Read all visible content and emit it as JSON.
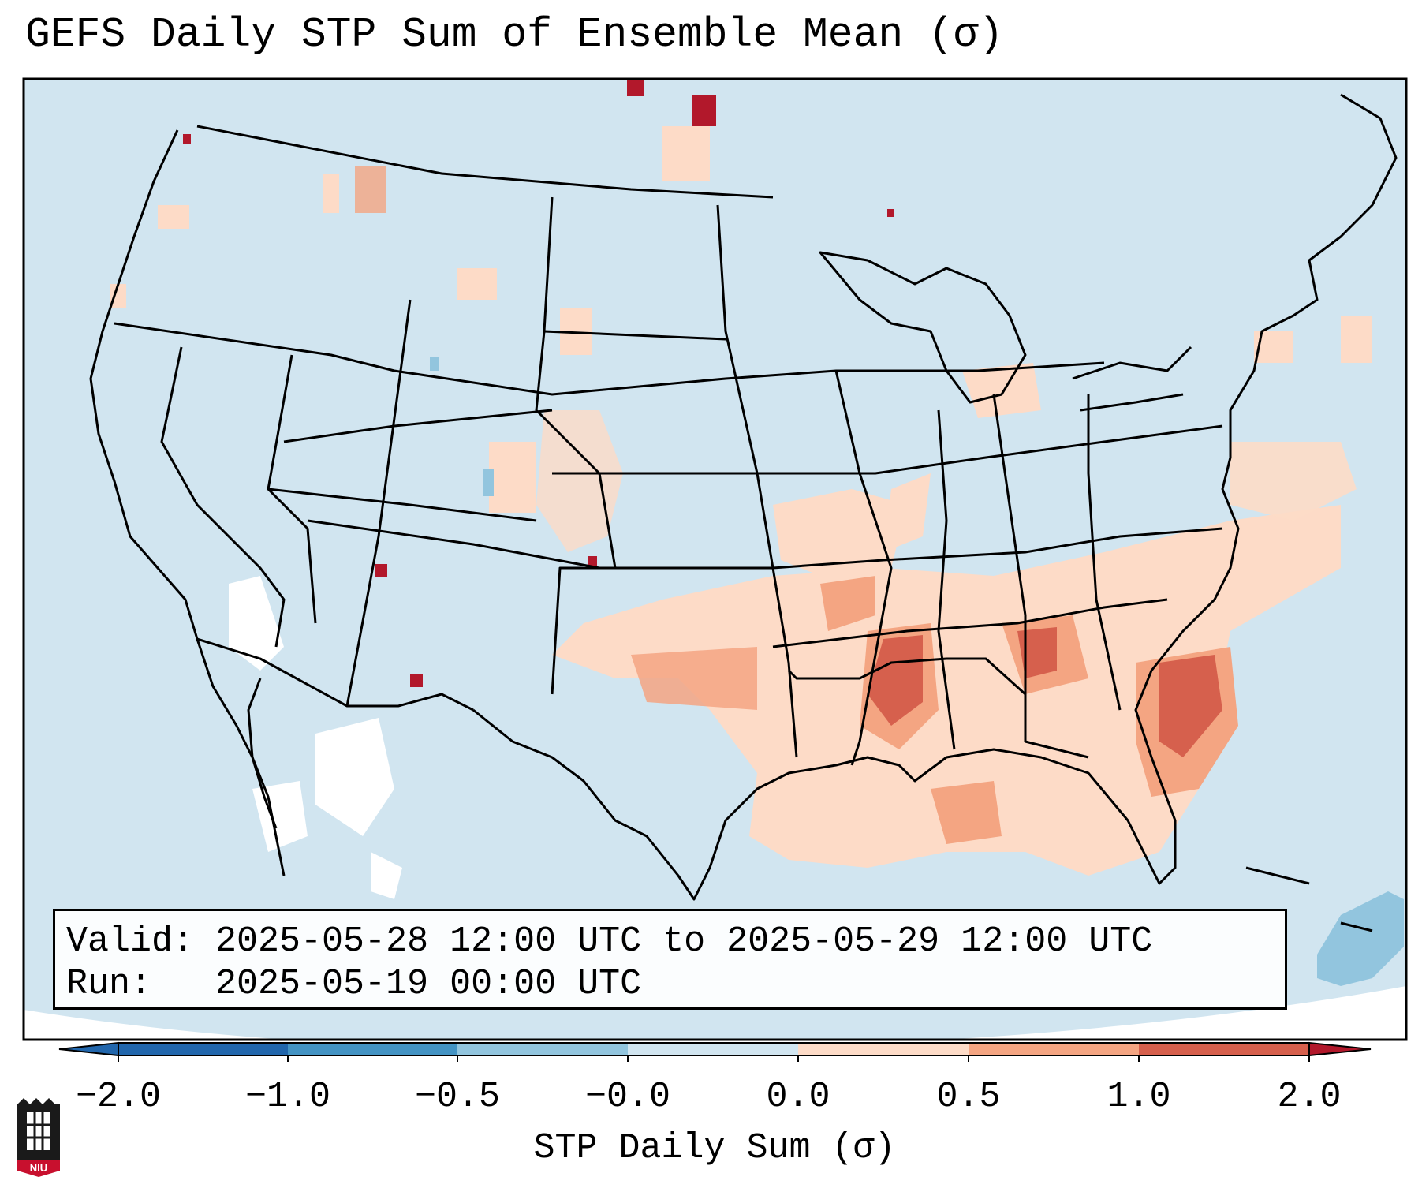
{
  "title": "GEFS Daily STP Sum of Ensemble Mean (σ)",
  "info": {
    "valid_line": "Valid: 2025-05-28 12:00 UTC to 2025-05-29 12:00 UTC",
    "run_line": "Run:   2025-05-19 00:00 UTC"
  },
  "colorbar": {
    "label": "STP Daily Sum (σ)",
    "ticks": [
      "−2.0",
      "−1.0",
      "−0.5",
      "−0.0",
      "0.0",
      "0.5",
      "1.0",
      "2.0"
    ],
    "colors": [
      "#2166ac",
      "#4393c3",
      "#92c5de",
      "#d1e5f0",
      "#ffffff",
      "#fddbc7",
      "#f4a582",
      "#d6604d",
      "#b2182b"
    ]
  },
  "logo": {
    "text": "NIU",
    "color": "#c8102e",
    "icon": "niu-tower-icon"
  },
  "map": {
    "background_color": "#d1e5f0",
    "outside_color": "#ffffff",
    "border_color": "#000000"
  }
}
